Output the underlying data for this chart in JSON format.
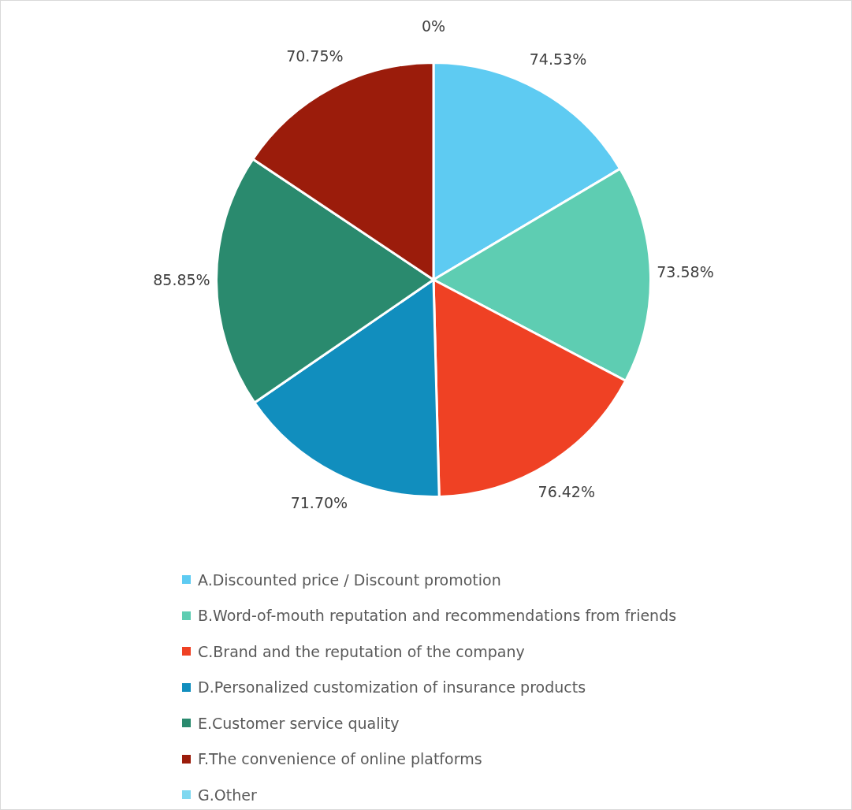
{
  "chart_data": {
    "type": "pie",
    "categories": [
      "A.Discounted price / Discount promotion",
      "B.Word-of-mouth reputation and recommendations from friends",
      "C.Brand and the reputation of the company",
      "D.Personalized customization of insurance products",
      "E.Customer service quality",
      "F.The convenience of online platforms",
      "G.Other"
    ],
    "values": [
      74.53,
      73.58,
      76.42,
      71.7,
      85.85,
      70.75,
      0
    ],
    "value_labels": [
      "74.53%",
      "73.58%",
      "76.42%",
      "71.70%",
      "85.85%",
      "70.75%",
      "0%"
    ],
    "colors": [
      "#5ecbf2",
      "#5ecdb2",
      "#ef4124",
      "#118ebe",
      "#2a8a6e",
      "#9b1c0b",
      "#7fd8f0"
    ],
    "legend": "bottom"
  }
}
